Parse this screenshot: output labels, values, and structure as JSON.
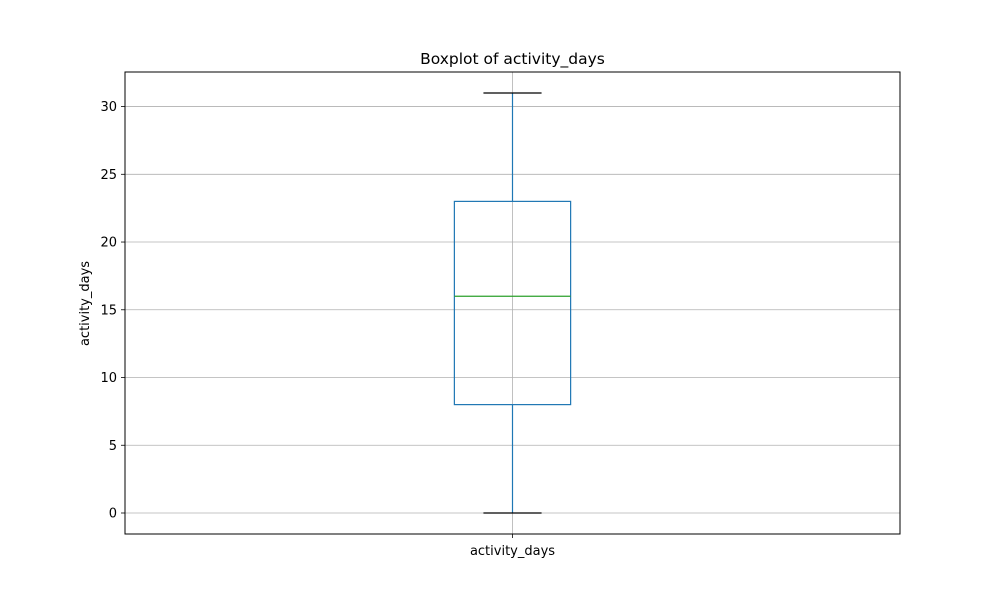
{
  "chart_data": {
    "type": "boxplot",
    "title": "Boxplot of activity_days",
    "xlabel": "",
    "ylabel": "activity_days",
    "categories": [
      "activity_days"
    ],
    "boxes": [
      {
        "category": "activity_days",
        "whisker_low": 0,
        "q1": 8,
        "median": 16,
        "q3": 23,
        "whisker_high": 31
      }
    ],
    "ylim": [
      -1.55,
      32.55
    ],
    "yticks": [
      0,
      5,
      10,
      15,
      20,
      25,
      30
    ],
    "grid": true,
    "colors": {
      "box": "#1f77b4",
      "whisker": "#1f77b4",
      "cap": "#000000",
      "median": "#2ca02c",
      "grid": "#b0b0b0"
    }
  }
}
